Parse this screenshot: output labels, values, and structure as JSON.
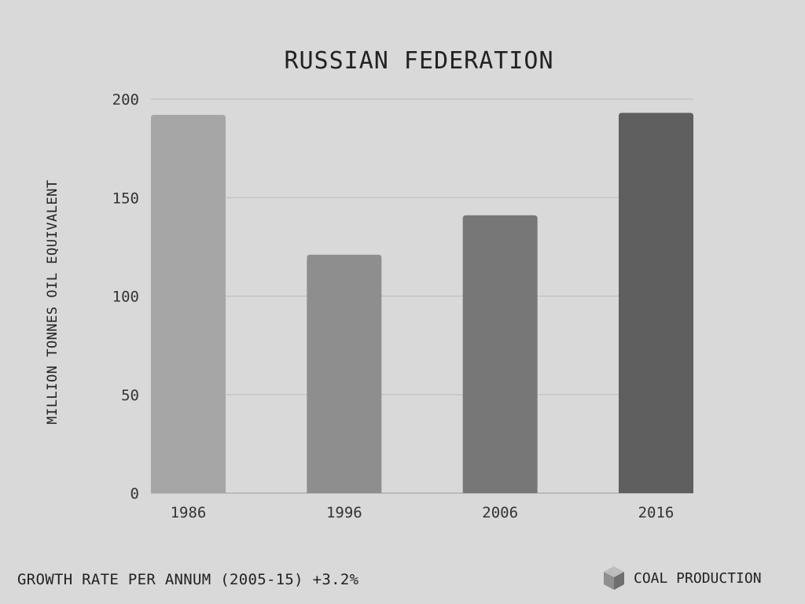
{
  "chart_data": {
    "type": "bar",
    "title": "RUSSIAN FEDERATION",
    "xlabel": "",
    "ylabel": "MILLION TONNES OIL EQUIVALENT",
    "categories": [
      "1986",
      "1996",
      "2006",
      "2016"
    ],
    "values": [
      192,
      121,
      141,
      193
    ],
    "ylim": [
      0,
      200
    ],
    "yticks": [
      0,
      50,
      100,
      150,
      200
    ],
    "grid": true,
    "bar_colors": [
      "#a6a6a6",
      "#8e8e8e",
      "#777777",
      "#5f5f5f"
    ]
  },
  "footer": {
    "growth_text": "GROWTH RATE PER ANNUM (2005-15) +3.2%",
    "legend_label": "COAL PRODUCTION",
    "legend_icon": "cube-icon"
  }
}
